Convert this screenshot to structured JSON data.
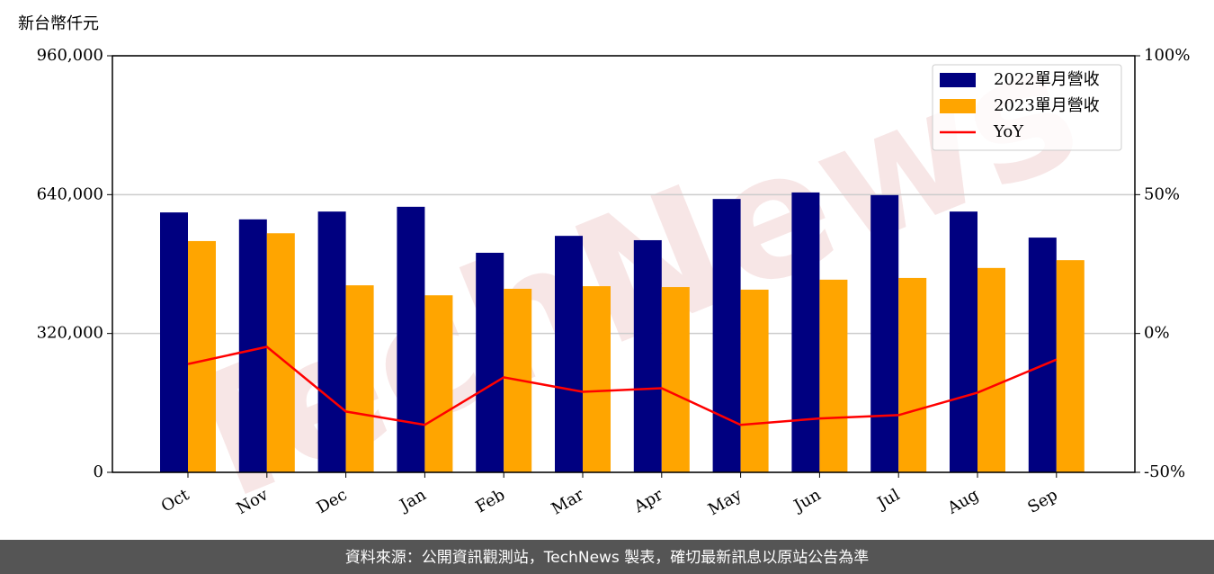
{
  "chart_data": {
    "type": "bar_line",
    "y_label": "新台幣仟元",
    "watermark": "TechNews",
    "footer": "資料來源：公開資訊觀測站，TechNews 製表，確切最新訊息以原站公告為準",
    "categories": [
      "Oct",
      "Nov",
      "Dec",
      "Jan",
      "Feb",
      "Mar",
      "Apr",
      "May",
      "Jun",
      "Jul",
      "Aug",
      "Sep"
    ],
    "series": [
      {
        "name": "2022單月營收",
        "color": "#000080",
        "type": "bar",
        "values": [
          599000,
          583000,
          601000,
          612000,
          506000,
          545000,
          535000,
          630000,
          645000,
          639000,
          601000,
          541000
        ]
      },
      {
        "name": "2023單月營收",
        "color": "#ffa500",
        "type": "bar",
        "values": [
          533000,
          551000,
          431000,
          408000,
          423000,
          429000,
          427000,
          421000,
          444000,
          448000,
          471000,
          489000
        ]
      },
      {
        "name": "YoY",
        "color": "#ff0000",
        "type": "line",
        "axis": "y2",
        "values": [
          -11.0,
          -4.8,
          -28.1,
          -32.9,
          -15.8,
          -21.0,
          -19.7,
          -32.9,
          -30.6,
          -29.4,
          -21.3,
          -9.4
        ]
      }
    ],
    "ylim": [
      0,
      960000
    ],
    "yticks": [
      0,
      {
        "value": 320000,
        "label": "320,000"
      },
      {
        "value": 640000,
        "label": "640,000"
      },
      {
        "value": 960000,
        "label": "960,000"
      }
    ],
    "y2lim": [
      -50,
      100
    ],
    "y2ticks": [
      {
        "value": -50,
        "label": "-50%"
      },
      {
        "value": 0,
        "label": "0%"
      },
      {
        "value": 50,
        "label": "50%"
      },
      {
        "value": 100,
        "label": "100%"
      }
    ],
    "grid": true,
    "legend": "upper right"
  }
}
